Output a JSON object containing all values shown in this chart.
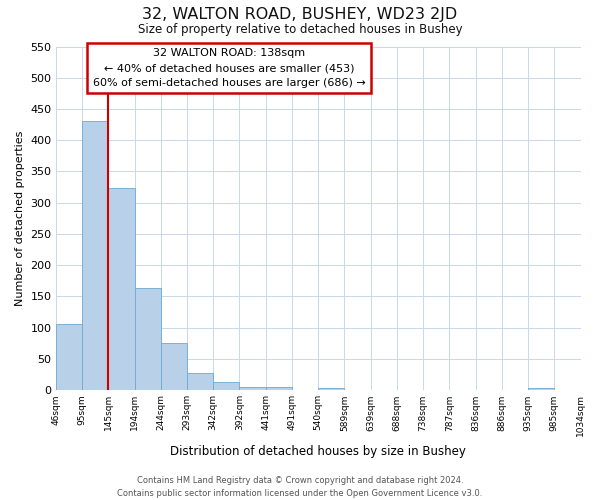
{
  "title": "32, WALTON ROAD, BUSHEY, WD23 2JD",
  "subtitle": "Size of property relative to detached houses in Bushey",
  "xlabel": "Distribution of detached houses by size in Bushey",
  "ylabel": "Number of detached properties",
  "bar_values": [
    105,
    430,
    323,
    163,
    75,
    27,
    13,
    5,
    5,
    0,
    3,
    0,
    0,
    0,
    0,
    0,
    0,
    0,
    3,
    0
  ],
  "bar_labels": [
    "46sqm",
    "95sqm",
    "145sqm",
    "194sqm",
    "244sqm",
    "293sqm",
    "342sqm",
    "392sqm",
    "441sqm",
    "491sqm",
    "540sqm",
    "589sqm",
    "639sqm",
    "688sqm",
    "738sqm",
    "787sqm",
    "836sqm",
    "886sqm",
    "935sqm",
    "985sqm",
    "1034sqm"
  ],
  "bar_color": "#b8d0e8",
  "bar_edge_color": "#6aaad4",
  "vline_color": "#cc0000",
  "vline_x": 2.0,
  "ylim": [
    0,
    550
  ],
  "yticks": [
    0,
    50,
    100,
    150,
    200,
    250,
    300,
    350,
    400,
    450,
    500,
    550
  ],
  "annotation_title": "32 WALTON ROAD: 138sqm",
  "annotation_line1": "← 40% of detached houses are smaller (453)",
  "annotation_line2": "60% of semi-detached houses are larger (686) →",
  "annotation_box_color": "#cc0000",
  "footer_line1": "Contains HM Land Registry data © Crown copyright and database right 2024.",
  "footer_line2": "Contains public sector information licensed under the Open Government Licence v3.0.",
  "bg_color": "#ffffff",
  "grid_color": "#c8d8ea"
}
